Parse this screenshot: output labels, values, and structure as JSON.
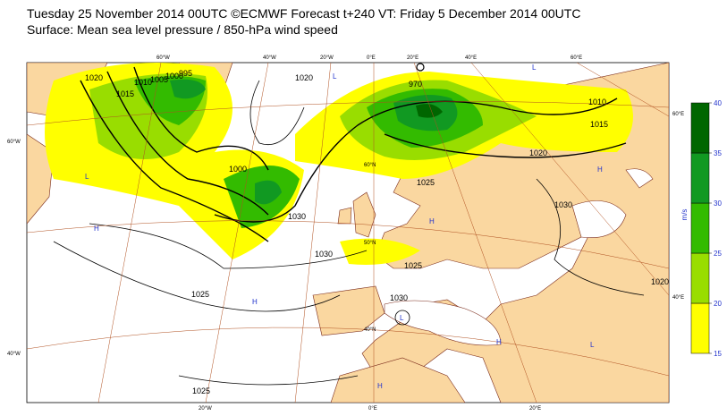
{
  "header": {
    "title": "Tuesday 25 November 2014 00UTC ©ECMWF Forecast t+240 VT: Friday 5 December 2014 00UTC",
    "subtitle": "Surface: Mean sea level pressure / 850-hPa wind speed"
  },
  "map": {
    "graticule_labels": [
      "60°W",
      "40°W",
      "20°W",
      "0°E",
      "20°E",
      "40°E",
      "60°E",
      "60°W",
      "40°W",
      "20°W",
      "0°E",
      "20°E",
      "60°E",
      "40°E",
      "60°N",
      "50°N",
      "40°N"
    ],
    "isobar_labels": [
      "1020",
      "1015",
      "1010",
      "1005",
      "1000",
      "995",
      "1020",
      "1000",
      "1030",
      "1030",
      "1025",
      "1025",
      "1025",
      "1030",
      "1030",
      "1020",
      "1015",
      "1010",
      "1025",
      "1020",
      "970"
    ],
    "centres": [
      "L",
      "H",
      "H",
      "H",
      "H",
      "L",
      "L",
      "H",
      "L",
      "H",
      "L"
    ]
  },
  "colorbar": {
    "unit": "m/s",
    "ticks": [
      15,
      20,
      25,
      30,
      35,
      40
    ],
    "colors": [
      "#ffff00",
      "#99dd00",
      "#33bb00",
      "#119922",
      "#006600"
    ]
  }
}
